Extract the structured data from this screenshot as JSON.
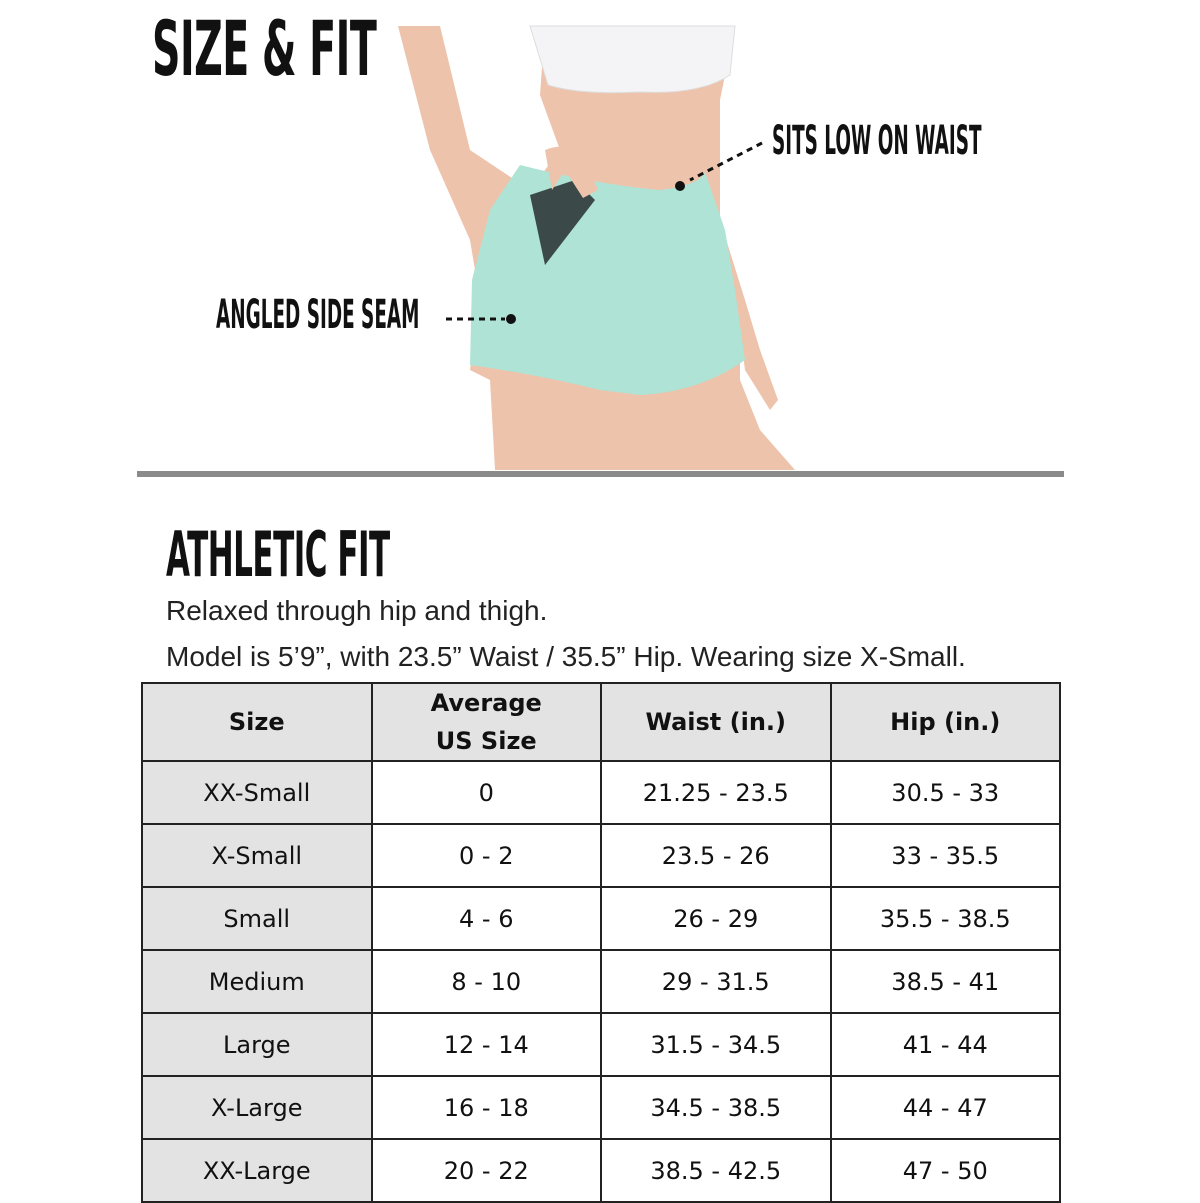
{
  "header": {
    "title": "SIZE & FIT"
  },
  "callouts": {
    "waist": "SITS LOW ON WAIST",
    "seam": "ANGLED SIDE SEAM"
  },
  "fit": {
    "title": "ATHLETIC FIT",
    "description": "Relaxed through hip and thigh.",
    "model_info": "Model is 5’9”, with 23.5” Waist / 35.5” Hip. Wearing size X-Small."
  },
  "colors": {
    "shorts": "#aee3d6",
    "divider": "#8a8a8a",
    "header_bg": "#e3e3e3"
  },
  "table": {
    "headers": [
      "Size",
      "Average US Size",
      "Waist (in.)",
      "Hip (in.)"
    ],
    "header_lines": {
      "avg1": "Average",
      "avg2": "US Size"
    },
    "rows": [
      [
        "XX-Small",
        "0",
        "21.25 - 23.5",
        "30.5 - 33"
      ],
      [
        "X-Small",
        "0 - 2",
        "23.5 - 26",
        "33 - 35.5"
      ],
      [
        "Small",
        "4 - 6",
        "26 - 29",
        "35.5 - 38.5"
      ],
      [
        "Medium",
        "8 - 10",
        "29 - 31.5",
        "38.5 - 41"
      ],
      [
        "Large",
        "12 - 14",
        "31.5 - 34.5",
        "41 - 44"
      ],
      [
        "X-Large",
        "16 - 18",
        "34.5 - 38.5",
        "44 - 47"
      ],
      [
        "XX-Large",
        "20 - 22",
        "38.5 - 42.5",
        "47 - 50"
      ]
    ]
  }
}
